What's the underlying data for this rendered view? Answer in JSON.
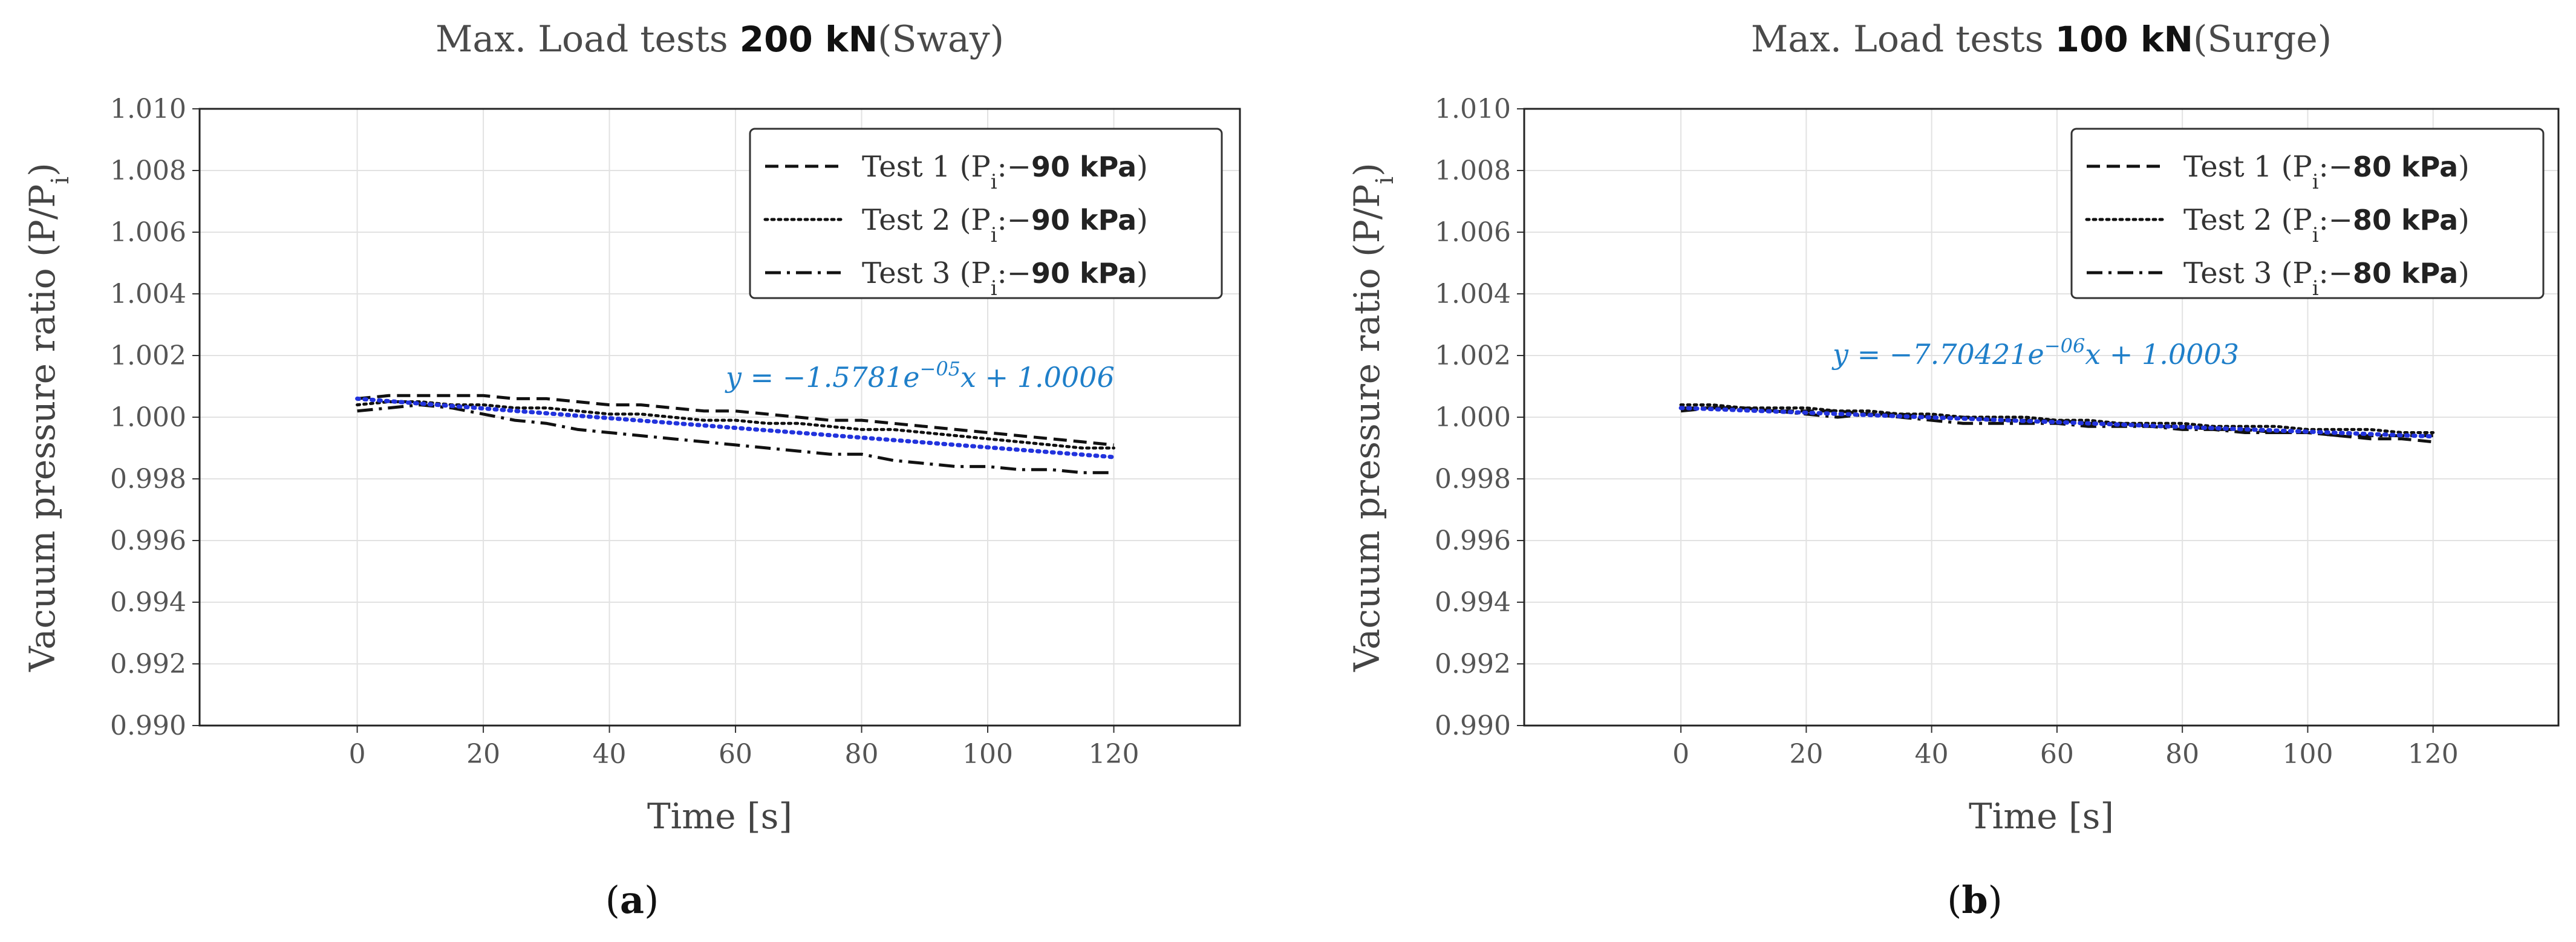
{
  "chart_data": [
    {
      "type": "line",
      "title_prefix": "Max. Load tests",
      "title_load": "200 kN",
      "title_suffix": "(Sway)",
      "xlabel": "Time [s]",
      "ylabel": "Vacuum pressure ratio (P/P",
      "ylabel_sub": "i",
      "ylabel_close": ")",
      "xlim": [
        -25,
        140
      ],
      "ylim": [
        0.99,
        1.01
      ],
      "xticks": [
        0,
        20,
        40,
        60,
        80,
        100,
        120
      ],
      "yticks": [
        "0.990",
        "0.992",
        "0.994",
        "0.996",
        "0.998",
        "1.000",
        "1.002",
        "1.004",
        "1.006",
        "1.008",
        "1.010"
      ],
      "grid": true,
      "legend_position": "top-right",
      "series": [
        {
          "name": "Test 1",
          "legend_suffix": "90 kPa",
          "style": "dashed",
          "color": "#111111",
          "x": [
            0,
            5,
            10,
            15,
            20,
            25,
            30,
            35,
            40,
            45,
            50,
            55,
            60,
            65,
            70,
            75,
            80,
            85,
            90,
            95,
            100,
            105,
            110,
            115,
            120
          ],
          "y": [
            1.0006,
            1.0007,
            1.0007,
            1.0007,
            1.0007,
            1.0006,
            1.0006,
            1.0005,
            1.0004,
            1.0004,
            1.0003,
            1.0002,
            1.0002,
            1.0001,
            1.0,
            0.9999,
            0.9999,
            0.9998,
            0.9997,
            0.9996,
            0.9995,
            0.9994,
            0.9993,
            0.9992,
            0.9991
          ]
        },
        {
          "name": "Test 2",
          "legend_suffix": "90 kPa",
          "style": "dotted",
          "color": "#111111",
          "x": [
            0,
            5,
            10,
            15,
            20,
            25,
            30,
            35,
            40,
            45,
            50,
            55,
            60,
            65,
            70,
            75,
            80,
            85,
            90,
            95,
            100,
            105,
            110,
            115,
            120
          ],
          "y": [
            1.0004,
            1.0005,
            1.0005,
            1.0004,
            1.0004,
            1.0003,
            1.0003,
            1.0002,
            1.0001,
            1.0001,
            1.0,
            0.9999,
            0.9999,
            0.9998,
            0.9998,
            0.9997,
            0.9996,
            0.9996,
            0.9995,
            0.9994,
            0.9993,
            0.9992,
            0.9991,
            0.999,
            0.999
          ]
        },
        {
          "name": "Test 3",
          "legend_suffix": "90 kPa",
          "style": "dashdot",
          "color": "#111111",
          "x": [
            0,
            5,
            10,
            15,
            20,
            25,
            30,
            35,
            40,
            45,
            50,
            55,
            60,
            65,
            70,
            75,
            80,
            85,
            90,
            95,
            100,
            105,
            110,
            115,
            120
          ],
          "y": [
            1.0002,
            1.0003,
            1.0004,
            1.0003,
            1.0001,
            0.9999,
            0.9998,
            0.9996,
            0.9995,
            0.9994,
            0.9993,
            0.9992,
            0.9991,
            0.999,
            0.9989,
            0.9988,
            0.9988,
            0.9986,
            0.9985,
            0.9984,
            0.9984,
            0.9983,
            0.9983,
            0.9982,
            0.9982
          ]
        }
      ],
      "fit": {
        "slope": -1.5781e-05,
        "intercept": 1.0006,
        "color": "#2233dd",
        "style": "dotted",
        "equation_lhs": "y = −1.5781e",
        "equation_exp": "−05",
        "equation_rhs": "x + 1.0006"
      },
      "panel_label": "a"
    },
    {
      "type": "line",
      "title_prefix": "Max. Load tests",
      "title_load": "100 kN",
      "title_suffix": "(Surge)",
      "xlabel": "Time [s]",
      "ylabel": "Vacuum pressure ratio (P/P",
      "ylabel_sub": "i",
      "ylabel_close": ")",
      "xlim": [
        -25,
        140
      ],
      "ylim": [
        0.99,
        1.01
      ],
      "xticks": [
        0,
        20,
        40,
        60,
        80,
        100,
        120
      ],
      "yticks": [
        "0.990",
        "0.992",
        "0.994",
        "0.996",
        "0.998",
        "1.000",
        "1.002",
        "1.004",
        "1.006",
        "1.008",
        "1.010"
      ],
      "grid": true,
      "legend_position": "top-right",
      "series": [
        {
          "name": "Test 1",
          "legend_suffix": "80 kPa",
          "style": "dashed",
          "color": "#111111",
          "x": [
            0,
            5,
            10,
            15,
            20,
            25,
            30,
            35,
            40,
            45,
            50,
            55,
            60,
            65,
            70,
            75,
            80,
            85,
            90,
            95,
            100,
            105,
            110,
            115,
            120
          ],
          "y": [
            1.0003,
            1.0003,
            1.0003,
            1.0002,
            1.0002,
            1.0002,
            1.0001,
            1.0001,
            1.0,
            1.0,
            0.9999,
            0.9999,
            0.9999,
            0.9998,
            0.9998,
            0.9997,
            0.9997,
            0.9996,
            0.9996,
            0.9995,
            0.9995,
            0.9994,
            0.9993,
            0.9993,
            0.9992
          ]
        },
        {
          "name": "Test 2",
          "legend_suffix": "80 kPa",
          "style": "dotted",
          "color": "#111111",
          "x": [
            0,
            5,
            10,
            15,
            20,
            25,
            30,
            35,
            40,
            45,
            50,
            55,
            60,
            65,
            70,
            75,
            80,
            85,
            90,
            95,
            100,
            105,
            110,
            115,
            120
          ],
          "y": [
            1.0004,
            1.0004,
            1.0003,
            1.0003,
            1.0003,
            1.0002,
            1.0002,
            1.0001,
            1.0001,
            1.0,
            1.0,
            1.0,
            0.9999,
            0.9999,
            0.9998,
            0.9998,
            0.9998,
            0.9997,
            0.9997,
            0.9997,
            0.9996,
            0.9996,
            0.9996,
            0.9995,
            0.9995
          ]
        },
        {
          "name": "Test 3",
          "legend_suffix": "80 kPa",
          "style": "dashdot",
          "color": "#111111",
          "x": [
            0,
            5,
            10,
            15,
            20,
            25,
            30,
            35,
            40,
            45,
            50,
            55,
            60,
            65,
            70,
            75,
            80,
            85,
            90,
            95,
            100,
            105,
            110,
            115,
            120
          ],
          "y": [
            1.0002,
            1.0003,
            1.0003,
            1.0002,
            1.0001,
            1.0,
            1.0001,
            1.0,
            0.9999,
            0.9998,
            0.9998,
            0.9998,
            0.9998,
            0.9997,
            0.9997,
            0.9997,
            0.9996,
            0.9996,
            0.9995,
            0.9995,
            0.9995,
            0.9994,
            0.9994,
            0.9994,
            0.9994
          ]
        }
      ],
      "fit": {
        "slope": -7.70421e-06,
        "intercept": 1.0003,
        "color": "#2233dd",
        "style": "dotted",
        "equation_lhs": "y = −7.70421e",
        "equation_exp": "−06",
        "equation_rhs": "x + 1.0003"
      },
      "panel_label": "b"
    }
  ],
  "legend_pressure_symbol": "P",
  "legend_pressure_sub": "i",
  "legend_pressure_sep": ":−"
}
